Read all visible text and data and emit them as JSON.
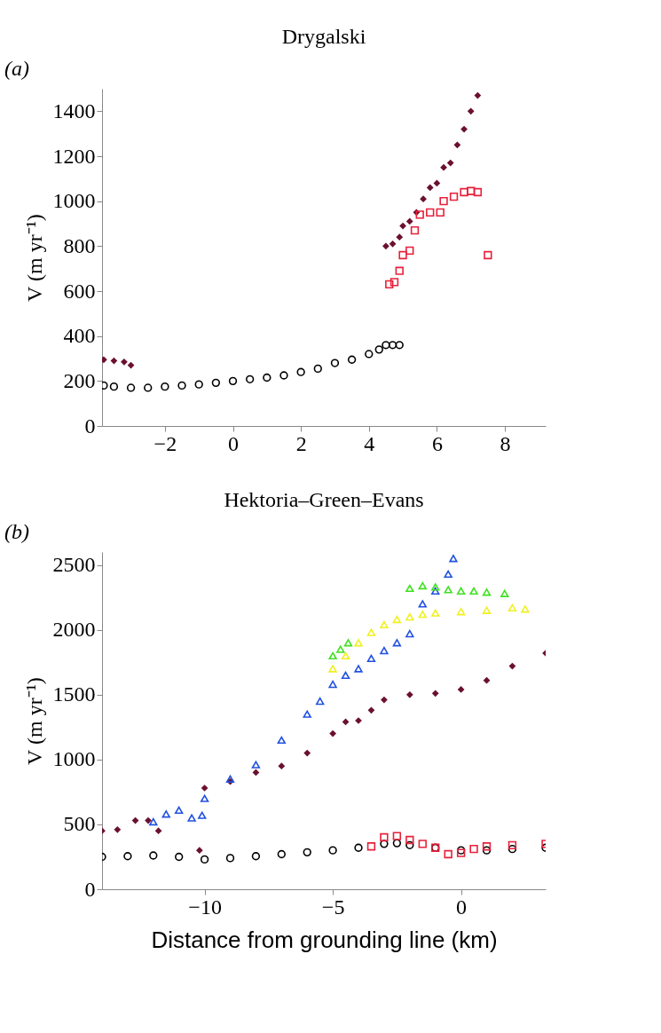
{
  "chart_data": [
    {
      "type": "scatter",
      "title": "Drygalski",
      "ylabel": "V (m yr⁻¹)",
      "annotations": [
        "(a)"
      ],
      "xlim": [
        -3.85,
        9.2
      ],
      "xticks": [
        -2,
        0,
        2,
        4,
        6,
        8
      ],
      "ylim": [
        0,
        1500
      ],
      "yticks": [
        0,
        200,
        400,
        600,
        800,
        1000,
        1200,
        1400
      ],
      "grid": false,
      "series": [
        {
          "color": "#000000",
          "marker": "circle",
          "x": [
            -3.8,
            -3.5,
            -3,
            -2.5,
            -2,
            -1.5,
            -1,
            -0.5,
            0,
            0.5,
            1,
            1.5,
            2,
            2.5,
            3,
            3.5,
            4,
            4.3,
            4.5,
            4.7,
            4.9
          ],
          "values": [
            180,
            175,
            170,
            170,
            175,
            180,
            185,
            192,
            200,
            208,
            215,
            225,
            240,
            255,
            280,
            295,
            320,
            340,
            360,
            360,
            360
          ]
        },
        {
          "color": "#6b1030",
          "marker": "diamond",
          "x": [
            -3.8,
            -3.5,
            -3.2,
            -3,
            4.5,
            4.7,
            4.9,
            5.0,
            5.2,
            5.4,
            5.6,
            5.8,
            6.0,
            6.2,
            6.4,
            6.6,
            6.8,
            7.0,
            7.2
          ],
          "values": [
            295,
            290,
            285,
            270,
            800,
            810,
            840,
            890,
            910,
            950,
            1010,
            1060,
            1080,
            1150,
            1170,
            1250,
            1320,
            1400,
            1470
          ]
        },
        {
          "color": "#e8203a",
          "marker": "square",
          "x": [
            4.6,
            4.75,
            4.9,
            5.0,
            5.2,
            5.35,
            5.5,
            5.8,
            6.1,
            6.2,
            6.5,
            6.8,
            7.0,
            7.2,
            7.5
          ],
          "values": [
            630,
            640,
            690,
            760,
            780,
            870,
            940,
            950,
            950,
            1000,
            1020,
            1040,
            1045,
            1040,
            760
          ]
        }
      ]
    },
    {
      "type": "scatter",
      "title": "Hektoria–Green–Evans",
      "ylabel": "V (m yr⁻¹)",
      "xlabel": "Distance from grounding line (km)",
      "annotations": [
        "(b)"
      ],
      "xlim": [
        -14,
        3.3
      ],
      "xticks": [
        -10,
        -5,
        0
      ],
      "ylim": [
        0,
        2600
      ],
      "yticks": [
        0,
        500,
        1000,
        1500,
        2000,
        2500
      ],
      "grid": false,
      "series": [
        {
          "color": "#000000",
          "marker": "circle",
          "x": [
            -14,
            -13,
            -12,
            -11,
            -10,
            -9,
            -8,
            -7,
            -6,
            -5,
            -4,
            -3,
            -2.5,
            -2,
            -1,
            0,
            1,
            2,
            3.3
          ],
          "values": [
            250,
            255,
            260,
            250,
            230,
            240,
            255,
            270,
            285,
            300,
            320,
            350,
            355,
            340,
            320,
            300,
            300,
            310,
            320
          ]
        },
        {
          "color": "#6b1030",
          "marker": "diamond",
          "x": [
            -14,
            -13.4,
            -12.7,
            -12.2,
            -11.8,
            -10.2,
            -10,
            -9,
            -8,
            -7,
            -6,
            -5,
            -4.5,
            -4,
            -3.5,
            -3,
            -2,
            -1,
            0,
            1,
            2,
            3.3
          ],
          "values": [
            450,
            460,
            530,
            530,
            450,
            300,
            780,
            830,
            900,
            950,
            1050,
            1200,
            1290,
            1300,
            1380,
            1460,
            1500,
            1510,
            1540,
            1610,
            1720,
            1820
          ]
        },
        {
          "color": "#2050e0",
          "marker": "triangle",
          "x": [
            -12,
            -11.5,
            -11,
            -10.5,
            -10.1,
            -10,
            -9,
            -8,
            -7,
            -6,
            -5.5,
            -5,
            -4.5,
            -4,
            -3.5,
            -3,
            -2.5,
            -2,
            -1.5,
            -1,
            -0.5,
            -0.3
          ],
          "values": [
            520,
            580,
            610,
            550,
            570,
            700,
            850,
            960,
            1150,
            1350,
            1450,
            1580,
            1650,
            1700,
            1780,
            1840,
            1900,
            1970,
            2200,
            2300,
            2430,
            2550
          ]
        },
        {
          "color": "#40e020",
          "marker": "triangle",
          "x": [
            -5,
            -4.7,
            -4.4,
            -2,
            -1.5,
            -1,
            -0.5,
            0,
            0.5,
            1,
            1.7
          ],
          "values": [
            1800,
            1850,
            1900,
            2320,
            2340,
            2330,
            2310,
            2300,
            2300,
            2290,
            2280
          ]
        },
        {
          "color": "#f0f020",
          "marker": "triangle",
          "x": [
            -5,
            -4.5,
            -4,
            -3.5,
            -3,
            -2.5,
            -2,
            -1.5,
            -1,
            0,
            1,
            2,
            2.5
          ],
          "values": [
            1700,
            1800,
            1900,
            1980,
            2040,
            2080,
            2100,
            2120,
            2130,
            2140,
            2150,
            2170,
            2160
          ]
        },
        {
          "color": "#e8203a",
          "marker": "square",
          "x": [
            -3.5,
            -3,
            -2.5,
            -2,
            -1.5,
            -1,
            -0.5,
            0,
            0.5,
            1,
            2,
            3.3
          ],
          "values": [
            330,
            400,
            410,
            380,
            350,
            320,
            270,
            280,
            310,
            330,
            340,
            350
          ]
        }
      ]
    }
  ]
}
